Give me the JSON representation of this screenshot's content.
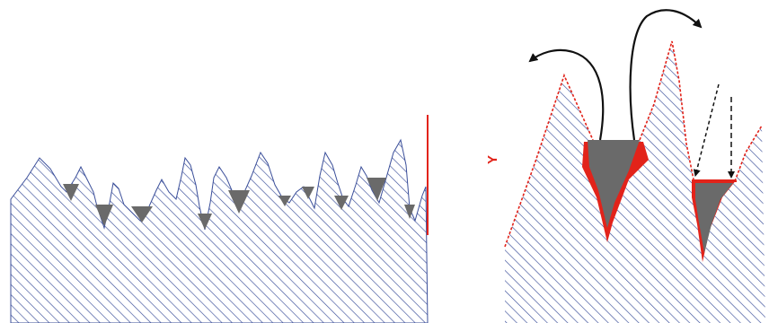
{
  "figure": {
    "axis_label": "Y"
  },
  "colors": {
    "hatch": "#3b4f9a",
    "surface_outline": "#3b4f9a",
    "valley_fill": "#6a6a6a",
    "highlight": "#e2231a",
    "arrow": "#111111"
  },
  "icons": {
    "curved_arrows": "curved-arrow-icon",
    "dashed_arrows": "dashed-arrow-icon"
  }
}
